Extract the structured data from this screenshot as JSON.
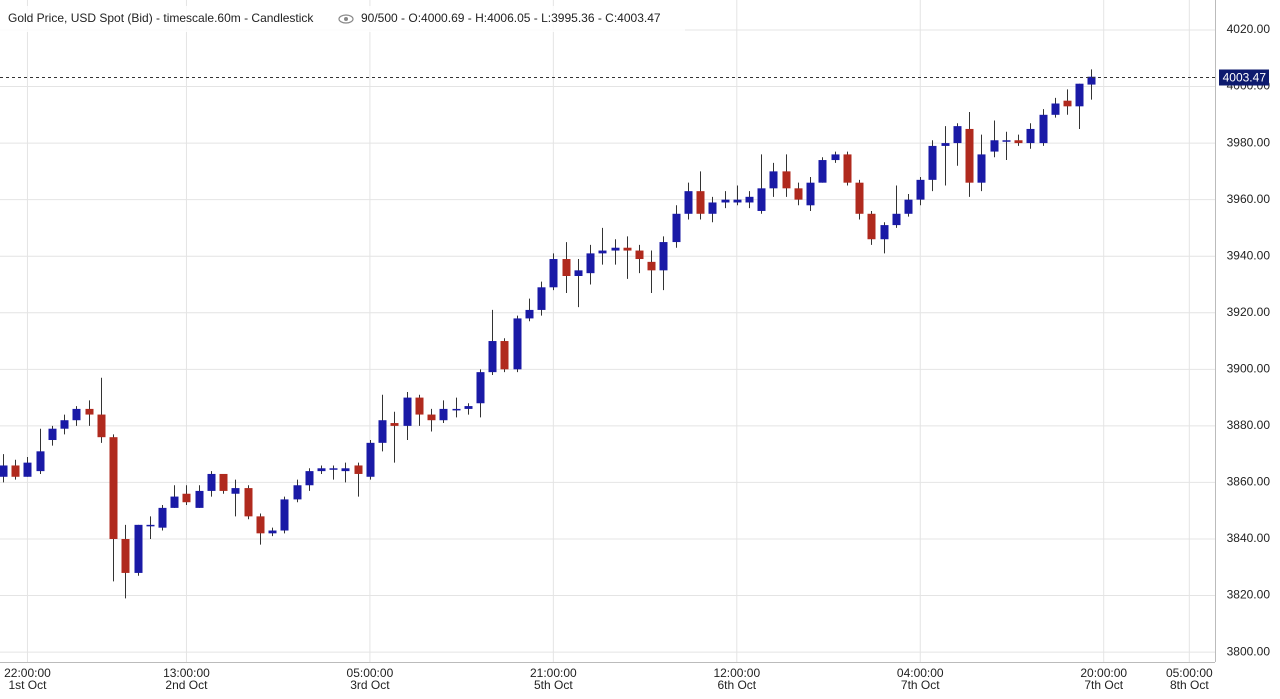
{
  "chart_data": {
    "type": "candlestick",
    "title": "Gold Price, USD Spot (Bid) - timescale.60m - Candlestick",
    "subtitle": "90/500 - O:4000.69 - H:4006.05 - L:3995.36 - C:4003.47",
    "up_color": "#1a1aa6",
    "down_color": "#b02a1e",
    "grid": true,
    "last_price": 4003.47,
    "ylim": [
      3796.5,
      4030.6
    ],
    "yticks": [
      {
        "value": 3800,
        "label": "3800.00"
      },
      {
        "value": 3820,
        "label": "3820.00"
      },
      {
        "value": 3840,
        "label": "3840.00"
      },
      {
        "value": 3860,
        "label": "3860.00"
      },
      {
        "value": 3880,
        "label": "3880.00"
      },
      {
        "value": 3900,
        "label": "3900.00"
      },
      {
        "value": 3920,
        "label": "3920.00"
      },
      {
        "value": 3940,
        "label": "3940.00"
      },
      {
        "value": 3960,
        "label": "3960.00"
      },
      {
        "value": 3980,
        "label": "3980.00"
      },
      {
        "value": 4000,
        "label": "4000.00"
      },
      {
        "value": 4020,
        "label": "4020.00"
      }
    ],
    "xlim": [
      -0.245,
      99.1
    ],
    "xticks": [
      {
        "value": 2,
        "label": "22:00:00",
        "sublabel": "1st Oct"
      },
      {
        "value": 15,
        "label": "13:00:00",
        "sublabel": "2nd Oct"
      },
      {
        "value": 30,
        "label": "05:00:00",
        "sublabel": "3rd Oct"
      },
      {
        "value": 45,
        "label": "21:00:00",
        "sublabel": "5th Oct"
      },
      {
        "value": 60,
        "label": "12:00:00",
        "sublabel": "6th Oct"
      },
      {
        "value": 75,
        "label": "04:00:00",
        "sublabel": "7th Oct"
      },
      {
        "value": 90,
        "label": "20:00:00",
        "sublabel": "7th Oct"
      },
      {
        "value": 97,
        "label": "05:00:00",
        "sublabel": "8th Oct"
      }
    ],
    "open": [
      3862,
      3866,
      3862,
      3864,
      3875,
      3879,
      3882,
      3886,
      3884,
      3876,
      3840,
      3828,
      3845,
      3844,
      3851,
      3856,
      3851,
      3857,
      3863,
      3856,
      3858,
      3848,
      3842,
      3843,
      3854,
      3859,
      3864,
      3865,
      3864,
      3866,
      3862,
      3874,
      3881,
      3880,
      3890,
      3884,
      3882,
      3886,
      3886,
      3888,
      3899,
      3910,
      3900,
      3918,
      3921,
      3929,
      3939,
      3933,
      3934,
      3941,
      3942,
      3943,
      3942,
      3938,
      3935,
      3945,
      3955,
      3963,
      3955,
      3959,
      3959,
      3959,
      3956,
      3964,
      3970,
      3964,
      3958,
      3966,
      3974,
      3976,
      3966,
      3955,
      3946,
      3951,
      3955,
      3960,
      3967,
      3979,
      3980,
      3985,
      3966,
      3977,
      3981,
      3981,
      3980,
      3980,
      3990,
      3995,
      3993,
      4000.69
    ],
    "high": [
      3870,
      3868,
      3869,
      3879,
      3880,
      3884,
      3887,
      3889,
      3897,
      3877,
      3845,
      3845,
      3848,
      3852,
      3859,
      3859,
      3859,
      3864,
      3863,
      3861,
      3859,
      3849,
      3844,
      3855,
      3861,
      3865,
      3866,
      3866,
      3867,
      3867,
      3875,
      3891,
      3885,
      3892,
      3891,
      3886,
      3889,
      3890,
      3888,
      3900,
      3921,
      3911,
      3919,
      3925,
      3931,
      3941,
      3945,
      3939,
      3944,
      3950,
      3946,
      3947,
      3944,
      3942,
      3947,
      3958,
      3966,
      3970,
      3961,
      3963,
      3965,
      3963,
      3976,
      3973,
      3976,
      3966,
      3968,
      3975,
      3977,
      3977,
      3967,
      3956,
      3952,
      3965,
      3962,
      3968,
      3981,
      3986,
      3987,
      3991,
      3983,
      3988,
      3984,
      3983,
      3987,
      3992,
      3996,
      3999,
      4001,
      4006.05
    ],
    "low": [
      3860,
      3861,
      3862,
      3863,
      3873,
      3877,
      3880,
      3880,
      3874,
      3825,
      3819,
      3827,
      3840,
      3843,
      3851,
      3852,
      3851,
      3855,
      3856,
      3848,
      3847,
      3838,
      3841,
      3842,
      3853,
      3857,
      3863,
      3861,
      3860,
      3855,
      3861,
      3871,
      3867,
      3875,
      3880,
      3878,
      3881,
      3883,
      3884,
      3883,
      3898,
      3899,
      3899,
      3917,
      3919,
      3928,
      3927,
      3922,
      3930,
      3937,
      3937,
      3932,
      3934,
      3927,
      3928,
      3943,
      3953,
      3953,
      3952,
      3957,
      3958,
      3957,
      3955,
      3961,
      3961,
      3958,
      3956,
      3966,
      3973,
      3965,
      3953,
      3944,
      3941,
      3950,
      3954,
      3958,
      3963,
      3965,
      3972,
      3961,
      3963,
      3975,
      3974,
      3979,
      3978,
      3979,
      3989,
      3990,
      3985,
      3995.36
    ],
    "close": [
      3866,
      3862,
      3867,
      3871,
      3879,
      3882,
      3886,
      3884,
      3876,
      3840,
      3828,
      3845,
      3845,
      3851,
      3855,
      3853,
      3857,
      3863,
      3857,
      3858,
      3848,
      3842,
      3843,
      3854,
      3859,
      3864,
      3865,
      3865,
      3865,
      3863,
      3874,
      3882,
      3880,
      3890,
      3884,
      3882,
      3886,
      3886,
      3887,
      3899,
      3910,
      3900,
      3918,
      3921,
      3929,
      3939,
      3933,
      3935,
      3941,
      3942,
      3943,
      3942,
      3939,
      3935,
      3945,
      3955,
      3963,
      3955,
      3959,
      3960,
      3960,
      3961,
      3964,
      3970,
      3964,
      3960,
      3966,
      3974,
      3976,
      3966,
      3955,
      3946,
      3951,
      3955,
      3960,
      3967,
      3979,
      3980,
      3986,
      3966,
      3976,
      3981,
      3981,
      3980,
      3985,
      3990,
      3994,
      3993,
      4001,
      4003.47
    ]
  }
}
